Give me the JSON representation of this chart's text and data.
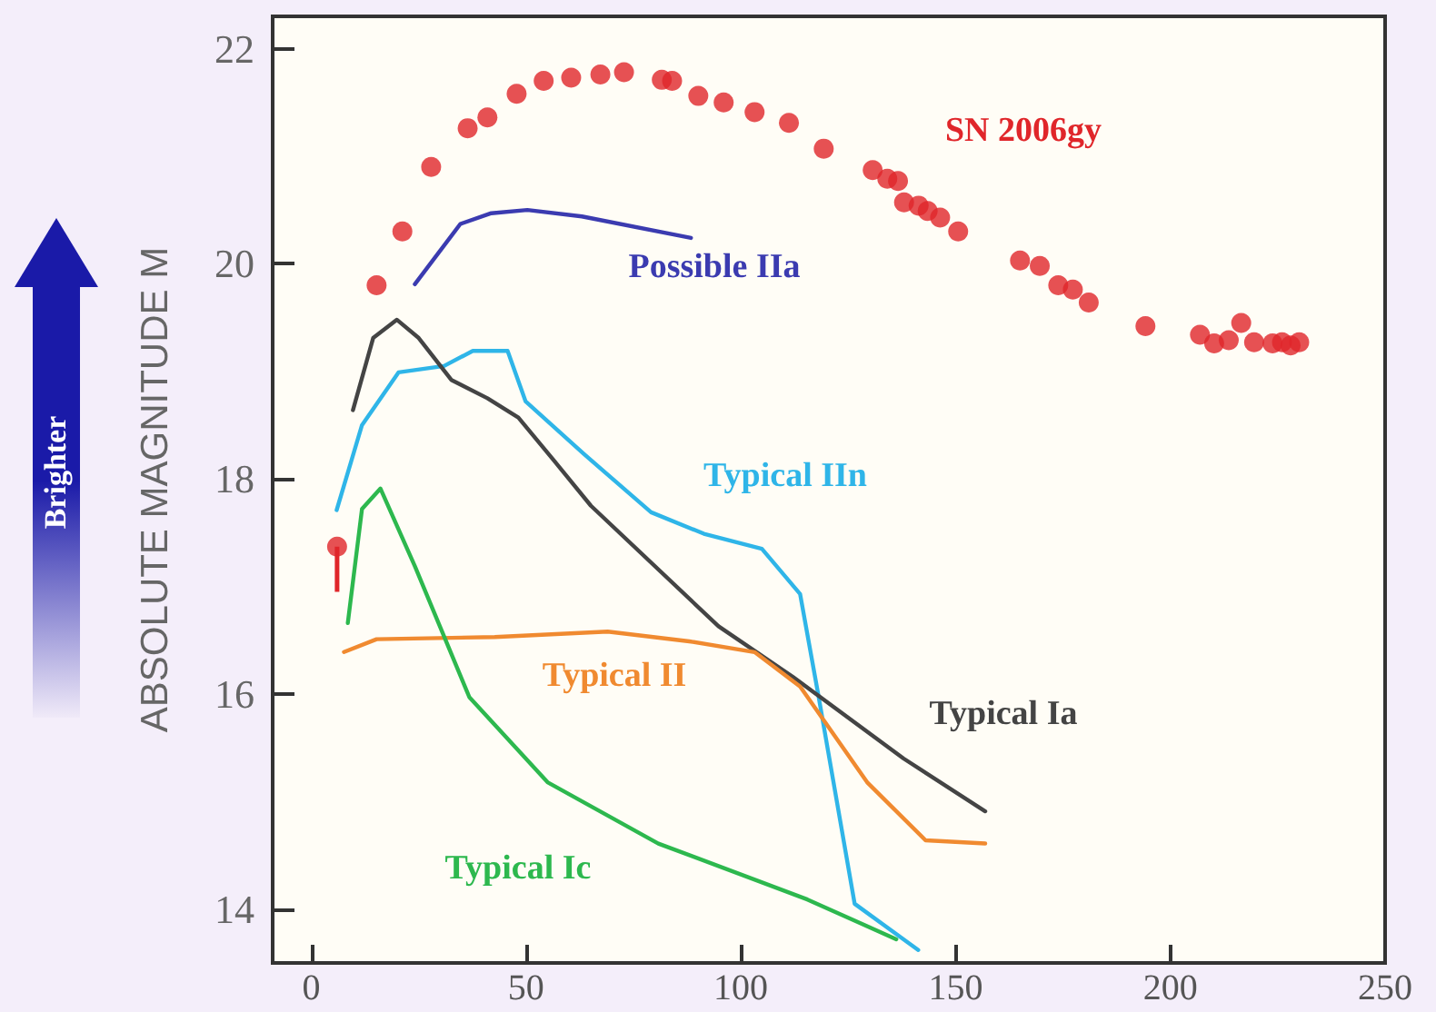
{
  "chart_data": {
    "type": "line",
    "ylabel": "ABSOLUTE MAGNITUDE M",
    "xlim": [
      -9,
      250
    ],
    "xticks": [
      0,
      50,
      100,
      150,
      200,
      250
    ],
    "ylim": [
      13.5,
      22.3
    ],
    "yticks": [
      14,
      16,
      18,
      20,
      22
    ],
    "grid": false,
    "legend": false,
    "line_style": "solid",
    "series": [
      {
        "type": "scatter",
        "name": "SN 2006gy",
        "marker": "circle",
        "color": "#e0262a",
        "x": [
          6,
          15.2,
          21.2,
          27.9,
          36.4,
          41,
          47.8,
          54.1,
          60.5,
          67.3,
          72.8,
          81.6,
          84,
          90.1,
          96,
          103.2,
          111.2,
          119.3,
          130.7,
          134.1,
          136.6,
          138,
          141.4,
          143.5,
          146.4,
          150.6,
          165,
          169.6,
          173.9,
          177.3,
          179.8,
          181,
          194.2,
          206.9,
          210.2,
          213.6,
          216.5,
          219.5,
          223.8,
          226,
          228,
          230
        ],
        "values": [
          17.37,
          19.8,
          20.3,
          20.9,
          21.26,
          21.36,
          21.58,
          21.7,
          21.73,
          21.76,
          21.78,
          21.71,
          21.7,
          21.56,
          21.5,
          21.41,
          21.31,
          21.07,
          20.87,
          20.79,
          20.77,
          20.57,
          20.54,
          20.49,
          20.43,
          20.3,
          20.03,
          19.98,
          19.8,
          19.76,
          null,
          19.64,
          19.42,
          19.34,
          19.26,
          19.29,
          19.45,
          19.27,
          19.26,
          19.27,
          19.24,
          19.27
        ],
        "errors": [
          [
            16.95,
            17.37
          ],
          null,
          null,
          null,
          null,
          null,
          null,
          null,
          null,
          null,
          null,
          null,
          null,
          null,
          null,
          null,
          null,
          null,
          null,
          null,
          null,
          null,
          null,
          null,
          null,
          null,
          null,
          null,
          null,
          null,
          null,
          null,
          null,
          null,
          null,
          null,
          null,
          null,
          null,
          null,
          null,
          null
        ]
      },
      {
        "name": "Possible IIa",
        "marker": "none",
        "color": "#3b3bb0",
        "x": [
          24.1,
          34.7,
          41.9,
          50.3,
          63,
          88.4
        ],
        "values": [
          19.81,
          20.37,
          20.47,
          20.5,
          20.44,
          20.24
        ]
      },
      {
        "name": "Typical IIn",
        "marker": "none",
        "color": "#2fb5e8",
        "x": [
          5.9,
          11.8,
          20.3,
          30.9,
          37.6,
          45.7,
          49.9,
          63.5,
          79.1,
          91.4,
          104.9,
          113.8,
          118,
          126.5,
          141.3
        ],
        "values": [
          17.71,
          18.5,
          18.99,
          19.05,
          19.19,
          19.19,
          18.72,
          18.23,
          17.69,
          17.49,
          17.35,
          16.93,
          16.0,
          14.05,
          13.62
        ]
      },
      {
        "name": "Typical Ia",
        "marker": "none",
        "color": "#444444",
        "x": [
          9.7,
          14.4,
          19.9,
          25,
          32.6,
          41,
          48.2,
          56.7,
          65.1,
          94.8,
          112.1,
          137.9,
          156.9
        ],
        "values": [
          18.64,
          19.31,
          19.48,
          19.31,
          18.92,
          18.75,
          18.57,
          18.16,
          17.75,
          16.63,
          16.16,
          15.4,
          14.91
        ]
      },
      {
        "name": "Typical II",
        "marker": "none",
        "color": "#f08a30",
        "x": [
          7.6,
          15.2,
          42.7,
          69,
          88,
          103.2,
          113.8,
          129.4,
          143,
          156.9
        ],
        "values": [
          16.39,
          16.51,
          16.53,
          16.58,
          16.49,
          16.39,
          16.07,
          15.18,
          14.64,
          14.61
        ]
      },
      {
        "name": "Typical Ic",
        "marker": "none",
        "color": "#2db84e",
        "x": [
          8.5,
          11.8,
          16.1,
          24.1,
          36.8,
          55,
          80.8,
          115.5,
          136.2
        ],
        "values": [
          16.66,
          17.72,
          17.91,
          17.19,
          15.97,
          15.18,
          14.61,
          14.09,
          13.72
        ]
      }
    ],
    "annotations": [
      "Brighter"
    ]
  }
}
